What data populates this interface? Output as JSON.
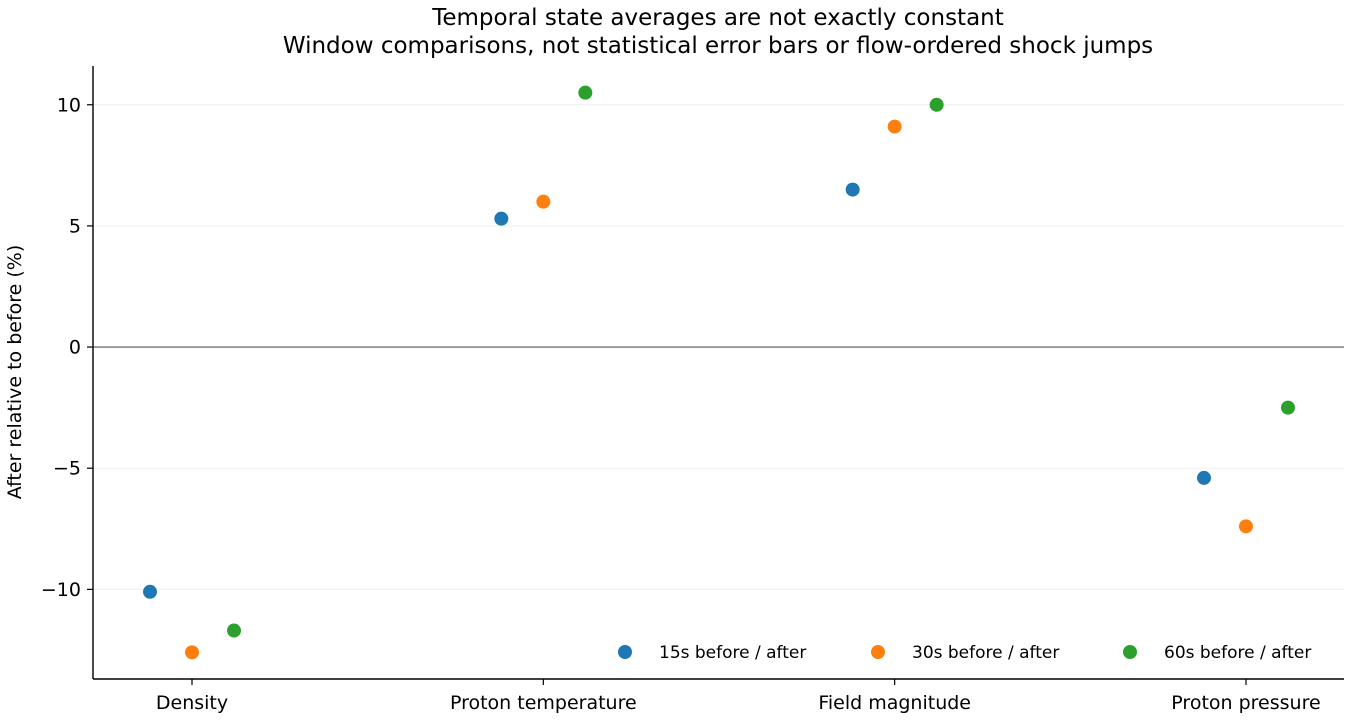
{
  "chart_data": {
    "type": "scatter",
    "title": "Temporal state averages are not exactly constant",
    "subtitle": "Window comparisons, not statistical error bars or flow-ordered shock jumps",
    "xlabel": "",
    "ylabel": "After relative to before (%)",
    "categories": [
      "Density",
      "Proton temperature",
      "Field magnitude",
      "Proton pressure"
    ],
    "ylim": [
      -13.7,
      11.6
    ],
    "yticks": [
      -10,
      -5,
      0,
      5,
      10
    ],
    "ytick_labels": [
      "−10",
      "−5",
      "0",
      "5",
      "10"
    ],
    "grid": "horizontal",
    "zero_line": true,
    "legend_position": "lower-right",
    "series": [
      {
        "name": "15s before / after",
        "color": "#1f77b4",
        "values": [
          -10.1,
          5.3,
          6.5,
          -5.4
        ]
      },
      {
        "name": "30s before / after",
        "color": "#ff7f0e",
        "values": [
          -12.6,
          6.0,
          9.1,
          -7.4
        ]
      },
      {
        "name": "60s before / after",
        "color": "#2ca02c",
        "values": [
          -11.7,
          10.5,
          10.0,
          -2.5
        ]
      }
    ]
  }
}
